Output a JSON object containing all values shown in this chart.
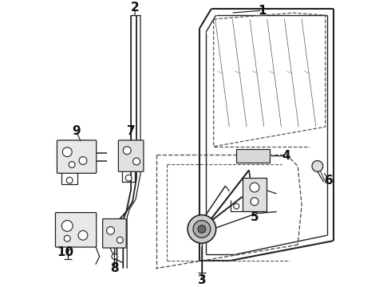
{
  "bg_color": "#ffffff",
  "line_color": "#222222",
  "dashed_color": "#555555",
  "figsize": [
    4.9,
    3.6
  ],
  "dpi": 100
}
